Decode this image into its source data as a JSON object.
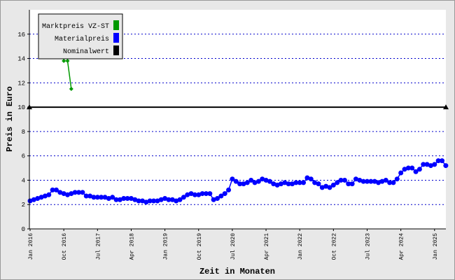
{
  "chart_data": {
    "type": "line",
    "y_label": "Preis in Euro",
    "x_label": "Zeit in Monaten",
    "ylim": [
      0,
      18
    ],
    "yticks": [
      0,
      2,
      4,
      6,
      8,
      10,
      12,
      14,
      16
    ],
    "grid": true,
    "legend": "top-left",
    "categories": [
      "Jan 2016",
      null,
      null,
      null,
      null,
      null,
      null,
      null,
      null,
      "Oct 2016",
      null,
      null,
      null,
      null,
      null,
      null,
      null,
      null,
      "Jul 2017",
      null,
      null,
      null,
      null,
      null,
      null,
      null,
      null,
      "Apr 2018",
      null,
      null,
      null,
      null,
      null,
      null,
      null,
      null,
      "Jan 2019",
      null,
      null,
      null,
      null,
      null,
      null,
      null,
      null,
      "Oct 2019",
      null,
      null,
      null,
      null,
      null,
      null,
      null,
      null,
      "Jul 2020",
      null,
      null,
      null,
      null,
      null,
      null,
      null,
      null,
      "Apr 2021",
      null,
      null,
      null,
      null,
      null,
      null,
      null,
      null,
      "Jan 2022",
      null,
      null,
      null,
      null,
      null,
      null,
      null,
      null,
      "Oct 2022",
      null,
      null,
      null,
      null,
      null,
      null,
      null,
      null,
      "Jul 2023",
      null,
      null,
      null,
      null,
      null,
      null,
      null,
      null,
      "Apr 2024",
      null,
      null,
      null,
      null,
      null,
      null,
      null,
      null,
      "Jan 2025",
      null,
      null,
      null
    ],
    "series": [
      {
        "name": "Marktpreis VZ-ST",
        "color": "#009900",
        "marker": "diamond",
        "values": [
          null,
          null,
          null,
          null,
          null,
          null,
          null,
          null,
          null,
          13.8,
          13.8,
          11.5,
          null,
          null,
          null,
          null,
          null,
          null,
          null,
          null,
          null,
          null,
          null,
          null,
          null,
          null,
          null,
          null,
          null,
          null,
          null,
          null,
          null,
          null,
          null,
          null,
          null,
          null,
          null,
          null,
          null,
          null,
          null,
          null,
          null,
          null,
          null,
          null,
          null,
          null,
          null,
          null,
          null,
          null,
          null,
          null,
          null,
          null,
          null,
          null,
          null,
          null,
          null,
          null,
          null,
          null,
          null,
          null,
          null,
          null,
          null,
          null,
          null,
          null,
          null,
          null,
          null,
          null,
          null,
          null,
          null,
          null,
          null,
          null,
          null,
          null,
          null,
          null,
          null,
          null,
          null,
          null,
          null,
          null,
          null,
          null,
          null,
          null,
          null,
          null,
          null,
          null,
          null,
          null,
          null,
          null,
          null,
          null,
          null,
          null,
          null,
          null
        ]
      },
      {
        "name": "Materialpreis",
        "color": "#0000ff",
        "marker": "circle",
        "values": [
          2.3,
          2.4,
          2.5,
          2.6,
          2.7,
          2.8,
          3.2,
          3.2,
          3.0,
          2.9,
          2.8,
          2.9,
          3.0,
          3.0,
          3.0,
          2.7,
          2.7,
          2.6,
          2.6,
          2.6,
          2.6,
          2.5,
          2.6,
          2.4,
          2.4,
          2.5,
          2.5,
          2.5,
          2.4,
          2.3,
          2.3,
          2.2,
          2.3,
          2.3,
          2.3,
          2.4,
          2.5,
          2.4,
          2.4,
          2.3,
          2.4,
          2.6,
          2.8,
          2.9,
          2.8,
          2.8,
          2.9,
          2.9,
          2.9,
          2.4,
          2.5,
          2.7,
          2.9,
          3.2,
          4.1,
          3.9,
          3.7,
          3.7,
          3.8,
          4.0,
          3.8,
          3.9,
          4.1,
          4.0,
          3.9,
          3.7,
          3.6,
          3.7,
          3.8,
          3.7,
          3.7,
          3.8,
          3.8,
          3.8,
          4.2,
          4.1,
          3.8,
          3.7,
          3.4,
          3.5,
          3.4,
          3.6,
          3.8,
          4.0,
          4.0,
          3.7,
          3.7,
          4.1,
          4.0,
          3.9,
          3.9,
          3.9,
          3.9,
          3.8,
          3.9,
          4.0,
          3.8,
          3.8,
          4.1,
          4.6,
          4.9,
          5.0,
          5.0,
          4.7,
          4.9,
          5.3,
          5.3,
          5.2,
          5.3,
          5.6,
          5.6,
          5.2
        ]
      }
    ],
    "reference_line": {
      "name": "Nominalwert",
      "color": "#000000",
      "value": 10
    }
  }
}
